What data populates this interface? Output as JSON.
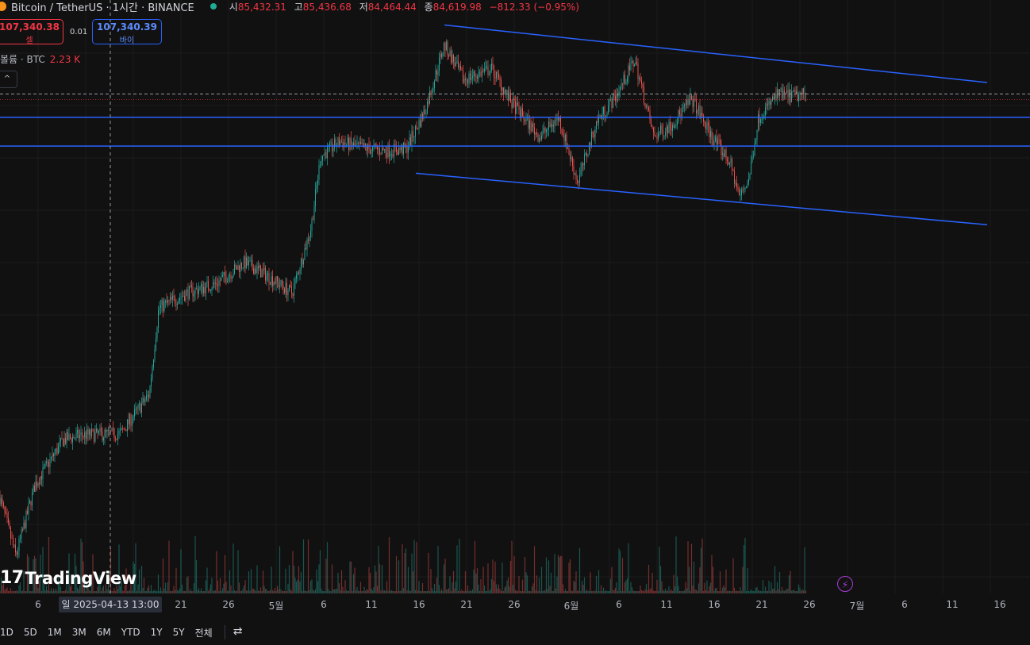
{
  "header": {
    "symbol": "Bitcoin / TetherUS · 1시간 · BINANCE",
    "open_label": "시",
    "open": "85,432.31",
    "high_label": "고",
    "high": "85,436.68",
    "low_label": "저",
    "low": "84,464.44",
    "close_label": "종",
    "close": "84,619.98",
    "change": "−812.33 (−0.95%)"
  },
  "trade": {
    "sell_price": "107,340.38",
    "sell_label": "셀",
    "spread": "0.01",
    "buy_price": "107,340.39",
    "buy_label": "바이"
  },
  "volume": {
    "label": "볼륨 · BTC",
    "value": "2.23 K"
  },
  "collapse_icon": "chevron-up-icon",
  "logo": "TradingView",
  "x_axis": {
    "ticks": [
      "6",
      "21",
      "26",
      "5월",
      "6",
      "11",
      "16",
      "21",
      "26",
      "6월",
      "6",
      "11",
      "16",
      "21",
      "26",
      "7월",
      "6",
      "11",
      "16"
    ],
    "crosshair_label": "일 2025-04-13   13:00"
  },
  "ranges": [
    "1D",
    "5D",
    "1M",
    "3M",
    "6M",
    "YTD",
    "1Y",
    "5Y",
    "전체"
  ],
  "colors": {
    "up": "#26a69a",
    "down": "#ef5350",
    "trendline": "#2962ff",
    "background": "#111111"
  },
  "chart_data": {
    "type": "candlestick",
    "interval": "1시간",
    "series_points": [
      {
        "x": "04-01",
        "y": 85400
      },
      {
        "x": "04-04",
        "y": 83800
      },
      {
        "x": "04-07",
        "y": 76800
      },
      {
        "x": "04-09",
        "y": 81500
      },
      {
        "x": "04-12",
        "y": 84500
      },
      {
        "x": "04-14",
        "y": 84800
      },
      {
        "x": "04-18",
        "y": 84900
      },
      {
        "x": "04-21",
        "y": 87500
      },
      {
        "x": "04-22",
        "y": 93200
      },
      {
        "x": "04-25",
        "y": 94200
      },
      {
        "x": "04-28",
        "y": 94800
      },
      {
        "x": "05-01",
        "y": 96200
      },
      {
        "x": "05-03",
        "y": 95500
      },
      {
        "x": "05-06",
        "y": 94200
      },
      {
        "x": "05-08",
        "y": 98500
      },
      {
        "x": "05-09",
        "y": 103200
      },
      {
        "x": "05-11",
        "y": 104200
      },
      {
        "x": "05-13",
        "y": 103800
      },
      {
        "x": "05-16",
        "y": 103600
      },
      {
        "x": "05-18",
        "y": 103700
      },
      {
        "x": "05-20",
        "y": 106300
      },
      {
        "x": "05-22",
        "y": 110600
      },
      {
        "x": "05-24",
        "y": 108300
      },
      {
        "x": "05-27",
        "y": 109000
      },
      {
        "x": "05-29",
        "y": 106800
      },
      {
        "x": "06-01",
        "y": 104500
      },
      {
        "x": "06-03",
        "y": 105800
      },
      {
        "x": "06-05",
        "y": 101500
      },
      {
        "x": "06-07",
        "y": 105500
      },
      {
        "x": "06-09",
        "y": 107200
      },
      {
        "x": "06-11",
        "y": 109600
      },
      {
        "x": "06-13",
        "y": 104500
      },
      {
        "x": "06-15",
        "y": 105400
      },
      {
        "x": "06-17",
        "y": 107000
      },
      {
        "x": "06-19",
        "y": 104600
      },
      {
        "x": "06-21",
        "y": 102800
      },
      {
        "x": "06-22",
        "y": 100500
      },
      {
        "x": "06-23",
        "y": 101800
      },
      {
        "x": "06-24",
        "y": 105800
      },
      {
        "x": "06-26",
        "y": 107300
      },
      {
        "x": "06-28",
        "y": 107200
      },
      {
        "x": "06-29",
        "y": 107340
      }
    ],
    "horizontal_lines": [
      105800,
      103900
    ],
    "channel_upper": [
      {
        "x": "05-22",
        "y": 111900
      },
      {
        "x": "07-18",
        "y": 108100
      }
    ],
    "channel_lower": [
      {
        "x": "05-19",
        "y": 102100
      },
      {
        "x": "07-18",
        "y": 98700
      }
    ],
    "ylim": [
      74500,
      112500
    ]
  }
}
